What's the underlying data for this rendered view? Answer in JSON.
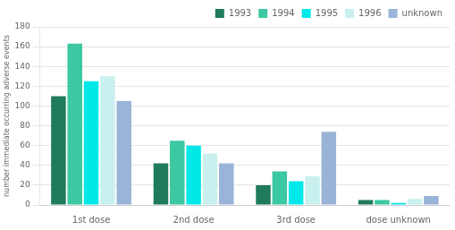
{
  "chart_data": {
    "type": "bar",
    "categories": [
      "1st dose",
      "2nd dose",
      "3rd dose",
      "dose unknown"
    ],
    "series": [
      {
        "name": "1993",
        "color": "#1f7a5e",
        "values": [
          110,
          42,
          20,
          5
        ]
      },
      {
        "name": "1994",
        "color": "#3cc8a0",
        "values": [
          163,
          65,
          34,
          5
        ]
      },
      {
        "name": "1995",
        "color": "#00e8e8",
        "values": [
          125,
          60,
          24,
          2
        ]
      },
      {
        "name": "1996",
        "color": "#c8f0ee",
        "values": [
          130,
          52,
          29,
          6
        ]
      },
      {
        "name": "unknown",
        "color": "#99b4d8",
        "values": [
          105,
          42,
          74,
          9
        ]
      }
    ],
    "ylabel": "number immediate occurring adverse events",
    "ylim": [
      0,
      180
    ],
    "yticks": [
      0,
      20,
      40,
      60,
      80,
      100,
      120,
      140,
      160,
      180
    ],
    "grid": true,
    "legend": "upper right"
  }
}
